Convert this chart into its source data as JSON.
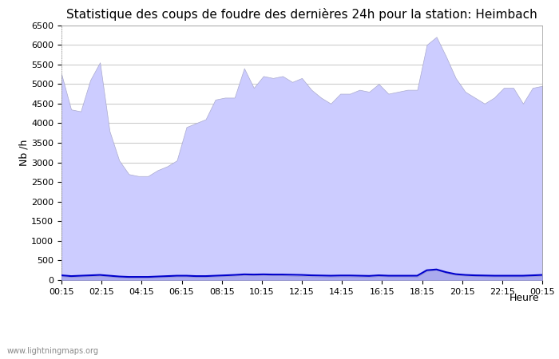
{
  "title": "Statistique des coups de foudre des dernières 24h pour la station: Heimbach",
  "ylabel": "Nb /h",
  "xlabel": "Heure",
  "xlim_labels": [
    "00:15",
    "02:15",
    "04:15",
    "06:15",
    "08:15",
    "10:15",
    "12:15",
    "14:15",
    "16:15",
    "18:15",
    "20:15",
    "22:15",
    "00:15"
  ],
  "ylim": [
    0,
    6500
  ],
  "yticks": [
    0,
    500,
    1000,
    1500,
    2000,
    2500,
    3000,
    3500,
    4000,
    4500,
    5000,
    5500,
    6000,
    6500
  ],
  "total_foudre": [
    5250,
    4350,
    4300,
    5100,
    5550,
    3800,
    3050,
    2700,
    2650,
    2650,
    2800,
    2900,
    3050,
    3900,
    4000,
    4100,
    4600,
    4650,
    4650,
    5400,
    4900,
    5200,
    5150,
    5200,
    5050,
    5150,
    4850,
    4650,
    4500,
    4750,
    4750,
    4850,
    4800,
    5000,
    4750,
    4800,
    4850,
    4850,
    6000,
    6200,
    5700,
    5150,
    4800,
    4650,
    4500,
    4650,
    4900,
    4900,
    4500,
    4900,
    4950
  ],
  "foudre_heimbach": [
    100,
    80,
    90,
    100,
    110,
    90,
    70,
    60,
    60,
    60,
    70,
    80,
    90,
    90,
    80,
    80,
    90,
    100,
    110,
    130,
    120,
    130,
    120,
    120,
    110,
    100,
    95,
    90,
    85,
    90,
    90,
    85,
    80,
    100,
    90,
    90,
    90,
    85,
    230,
    260,
    180,
    130,
    110,
    100,
    95,
    90,
    90,
    90,
    90,
    100,
    110
  ],
  "moyenne_stations": [
    120,
    100,
    110,
    120,
    130,
    110,
    90,
    80,
    80,
    80,
    90,
    100,
    110,
    110,
    100,
    100,
    110,
    120,
    130,
    145,
    140,
    145,
    140,
    140,
    135,
    130,
    120,
    115,
    110,
    115,
    115,
    110,
    105,
    120,
    110,
    110,
    110,
    110,
    250,
    270,
    200,
    150,
    130,
    120,
    115,
    110,
    110,
    110,
    110,
    120,
    130
  ],
  "total_foudre_color": "#ccccff",
  "total_foudre_edge": "#aaaacc",
  "heimbach_color": "#aaaaee",
  "heimbach_edge": "#8888cc",
  "moyenne_color": "#0000cc",
  "background_color": "#ffffff",
  "grid_color": "#cccccc",
  "title_fontsize": 11,
  "watermark": "www.lightningmaps.org"
}
